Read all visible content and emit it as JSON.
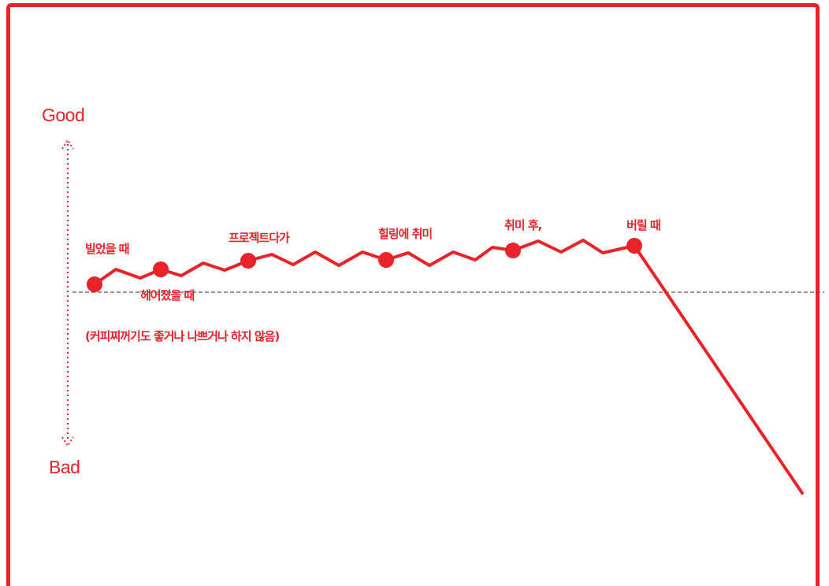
{
  "chart_data": {
    "type": "line",
    "y_top_label": "Good",
    "y_bottom_label": "Bad",
    "baseline_note": "(커피찌꺼기도 좋거나 나쁘거나 하지 않음)",
    "points": [
      {
        "label": ""
      },
      {
        "label": "빌었을 때"
      },
      {
        "label": "헤어졌을 때"
      },
      {
        "label": "프로젝트다가"
      },
      {
        "label": "힐링에 취미"
      },
      {
        "label": "취미 후,"
      },
      {
        "label": "버릴 때"
      }
    ],
    "colors": {
      "accent": "#e8232a",
      "baseline": "#555555"
    }
  }
}
